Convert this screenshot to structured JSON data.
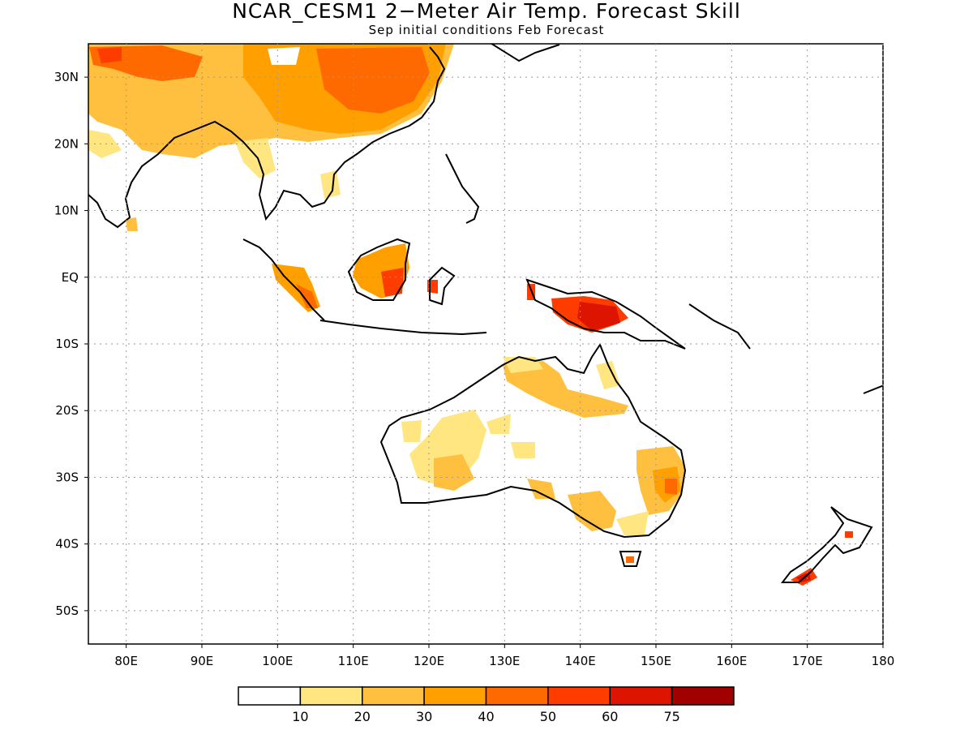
{
  "title": "NCAR_CESM1 2−Meter Air Temp. Forecast Skill",
  "subtitle": "Sep initial conditions  Feb Forecast",
  "map": {
    "lon_range": [
      75,
      180
    ],
    "lat_range": [
      -55,
      35
    ],
    "x_ticks": [
      "80E",
      "90E",
      "100E",
      "110E",
      "120E",
      "130E",
      "140E",
      "150E",
      "160E",
      "170E",
      "180"
    ],
    "y_ticks": [
      "30N",
      "20N",
      "10N",
      "EQ",
      "10S",
      "20S",
      "30S",
      "40S",
      "50S"
    ],
    "grid": "dotted"
  },
  "colorbar": {
    "labels": [
      "10",
      "20",
      "30",
      "40",
      "50",
      "60",
      "75"
    ],
    "colors": [
      "#ffffff",
      "#ffe680",
      "#ffc040",
      "#ffa000",
      "#ff6a00",
      "#ff3c00",
      "#dc1400",
      "#a00000"
    ]
  },
  "skill_regions": [
    {
      "name": "tibet-china-north",
      "color": "#ffa000"
    },
    {
      "name": "china-core",
      "color": "#ff6a00"
    },
    {
      "name": "himalaya-west",
      "color": "#ff6a00"
    },
    {
      "name": "india-north",
      "color": "#ffe680"
    },
    {
      "name": "borneo",
      "color": "#ffa000"
    },
    {
      "name": "borneo-south",
      "color": "#ff3c00"
    },
    {
      "name": "sumatra",
      "color": "#ffa000"
    },
    {
      "name": "new-guinea",
      "color": "#dc1400"
    },
    {
      "name": "australia-north",
      "color": "#ffc040"
    },
    {
      "name": "australia-west",
      "color": "#ffe680"
    },
    {
      "name": "australia-east",
      "color": "#ffa000"
    },
    {
      "name": "australia-south",
      "color": "#ffc040"
    },
    {
      "name": "new-zealand-south",
      "color": "#dc1400"
    }
  ]
}
